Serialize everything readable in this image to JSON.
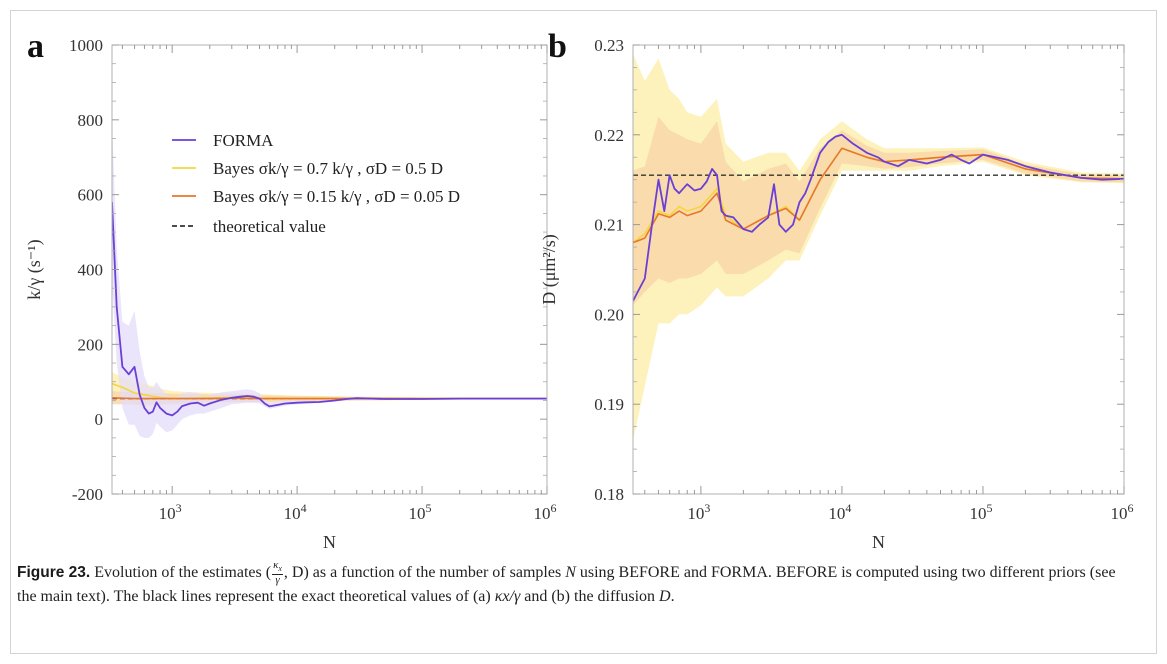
{
  "chart_data": [
    {
      "panel_label": "a",
      "type": "line",
      "xscale": "log",
      "xlim": [
        330,
        1000000
      ],
      "ylim": [
        -200,
        1000
      ],
      "xlabel": "N",
      "ylabel": "k/γ (s⁻¹)",
      "yticks": [
        -200,
        0,
        200,
        400,
        600,
        800,
        1000
      ],
      "ytick_labels": [
        "-200",
        "0",
        "200",
        "400",
        "600",
        "800",
        "1000"
      ],
      "xticks": [
        1000,
        10000,
        100000,
        1000000
      ],
      "legend": {
        "placement": "upper-center",
        "entries": [
          {
            "label": "FORMA",
            "series": "forma"
          },
          {
            "label": "Bayes    σk/γ = 0.7 k/γ ,   σD = 0.5 D",
            "series": "bayes1"
          },
          {
            "label": "Bayes    σk/γ = 0.15 k/γ ,   σD = 0.05 D",
            "series": "bayes2"
          },
          {
            "label": "theoretical value",
            "series": "theory"
          }
        ]
      },
      "theory": 55,
      "series": [
        {
          "key": "bayes1",
          "color": "#f5d63d",
          "band_color": "#fdf0b0",
          "x": [
            330,
            400,
            500,
            600,
            800,
            1000,
            1500,
            2000,
            3000,
            5000,
            10000,
            30000,
            100000,
            1000000
          ],
          "y": [
            95,
            85,
            70,
            65,
            58,
            55,
            56,
            57,
            58,
            56,
            55,
            55,
            55,
            55
          ],
          "lo": [
            65,
            58,
            40,
            35,
            35,
            38,
            40,
            43,
            45,
            45,
            47,
            50,
            52,
            53
          ],
          "hi": [
            125,
            112,
            100,
            95,
            82,
            75,
            72,
            70,
            70,
            67,
            63,
            60,
            58,
            57
          ]
        },
        {
          "key": "bayes2",
          "color": "#e8772e",
          "band_color": "#f8d7a9",
          "x": [
            330,
            400,
            500,
            600,
            800,
            1000,
            1500,
            2000,
            3000,
            5000,
            10000,
            30000,
            100000,
            1000000
          ],
          "y": [
            57,
            56,
            55,
            55,
            55,
            55,
            55,
            55,
            56,
            55,
            55,
            55,
            55,
            55
          ],
          "lo": [
            40,
            40,
            38,
            38,
            40,
            42,
            43,
            45,
            46,
            46,
            48,
            50,
            52,
            53
          ],
          "hi": [
            75,
            73,
            72,
            70,
            70,
            68,
            67,
            66,
            66,
            64,
            62,
            60,
            58,
            57
          ]
        },
        {
          "key": "forma",
          "color": "#6a3fd6",
          "band_color": "#e4dcf9",
          "x": [
            330,
            360,
            400,
            450,
            500,
            550,
            600,
            650,
            700,
            750,
            800,
            900,
            1000,
            1100,
            1200,
            1400,
            1600,
            1800,
            2000,
            2500,
            3000,
            3500,
            4000,
            4500,
            5000,
            5500,
            6000,
            7000,
            8000,
            10000,
            12000,
            15000,
            20000,
            25000,
            30000,
            40000,
            50000,
            70000,
            100000,
            200000,
            500000,
            1000000
          ],
          "y": [
            580,
            300,
            140,
            120,
            140,
            65,
            30,
            15,
            20,
            45,
            30,
            15,
            10,
            20,
            35,
            42,
            44,
            36,
            42,
            52,
            57,
            60,
            62,
            60,
            55,
            42,
            34,
            38,
            42,
            44,
            45,
            46,
            50,
            54,
            56,
            55,
            54,
            54,
            54,
            55,
            55,
            55
          ],
          "lo": [
            370,
            150,
            30,
            -15,
            -15,
            -45,
            -50,
            -50,
            -40,
            -10,
            -20,
            -35,
            -30,
            -15,
            0,
            10,
            15,
            15,
            20,
            30,
            40,
            42,
            44,
            44,
            42,
            34,
            28,
            32,
            36,
            40,
            42,
            43,
            47,
            51,
            53,
            52,
            52,
            52,
            53,
            54,
            54,
            54
          ],
          "hi": [
            790,
            460,
            260,
            250,
            290,
            180,
            115,
            85,
            85,
            100,
            85,
            65,
            55,
            58,
            70,
            72,
            70,
            60,
            65,
            72,
            75,
            78,
            80,
            77,
            70,
            55,
            45,
            48,
            50,
            50,
            50,
            50,
            54,
            57,
            60,
            58,
            57,
            56,
            56,
            56,
            56,
            56
          ]
        }
      ]
    },
    {
      "panel_label": "b",
      "type": "line",
      "xscale": "log",
      "xlim": [
        330,
        1000000
      ],
      "ylim": [
        0.18,
        0.23
      ],
      "xlabel": "N",
      "ylabel": "D (μm²/s)",
      "yticks": [
        0.18,
        0.19,
        0.2,
        0.21,
        0.22,
        0.23
      ],
      "ytick_labels": [
        "0.18",
        "0.19",
        "0.20",
        "0.21",
        "0.22",
        "0.23"
      ],
      "xticks": [
        1000,
        10000,
        100000,
        1000000
      ],
      "theory": 0.2155,
      "series": [
        {
          "key": "bayes1",
          "color": "#f5d63d",
          "band_color": "#fdf0b0",
          "x": [
            330,
            400,
            500,
            600,
            700,
            800,
            1000,
            1300,
            1500,
            2000,
            3000,
            4000,
            5000,
            7000,
            10000,
            15000,
            20000,
            30000,
            50000,
            100000,
            200000,
            500000,
            1000000
          ],
          "y": [
            0.208,
            0.209,
            0.2115,
            0.211,
            0.212,
            0.2115,
            0.212,
            0.214,
            0.211,
            0.2095,
            0.211,
            0.212,
            0.2105,
            0.215,
            0.2185,
            0.2175,
            0.217,
            0.2172,
            0.2175,
            0.2178,
            0.2162,
            0.2152,
            0.2151
          ],
          "lo": [
            0.186,
            0.192,
            0.199,
            0.199,
            0.2,
            0.2,
            0.201,
            0.203,
            0.202,
            0.202,
            0.204,
            0.206,
            0.206,
            0.211,
            0.216,
            0.216,
            0.216,
            0.216,
            0.2165,
            0.217,
            0.2155,
            0.2147,
            0.2146
          ],
          "hi": [
            0.229,
            0.226,
            0.2285,
            0.225,
            0.224,
            0.2225,
            0.222,
            0.224,
            0.219,
            0.217,
            0.218,
            0.218,
            0.216,
            0.2195,
            0.2215,
            0.2195,
            0.2185,
            0.2185,
            0.2185,
            0.2186,
            0.217,
            0.2158,
            0.2157
          ]
        },
        {
          "key": "bayes2",
          "color": "#e8772e",
          "band_color": "#f8d7a9",
          "x": [
            330,
            400,
            500,
            600,
            700,
            800,
            1000,
            1300,
            1500,
            2000,
            3000,
            4000,
            5000,
            7000,
            10000,
            15000,
            20000,
            30000,
            50000,
            100000,
            200000,
            500000,
            1000000
          ],
          "y": [
            0.208,
            0.2085,
            0.2112,
            0.2108,
            0.2115,
            0.211,
            0.2115,
            0.2135,
            0.2105,
            0.2095,
            0.211,
            0.2118,
            0.2105,
            0.215,
            0.2185,
            0.2175,
            0.217,
            0.2172,
            0.2175,
            0.2178,
            0.2162,
            0.2152,
            0.2151
          ],
          "lo": [
            0.201,
            0.2025,
            0.204,
            0.2035,
            0.204,
            0.204,
            0.2045,
            0.206,
            0.2045,
            0.2045,
            0.206,
            0.2072,
            0.2068,
            0.2118,
            0.2168,
            0.2165,
            0.2162,
            0.2164,
            0.2168,
            0.2172,
            0.2157,
            0.2148,
            0.2147
          ],
          "hi": [
            0.216,
            0.2165,
            0.222,
            0.2205,
            0.22,
            0.2195,
            0.219,
            0.2215,
            0.217,
            0.2148,
            0.2162,
            0.2168,
            0.2148,
            0.2185,
            0.2205,
            0.2188,
            0.218,
            0.218,
            0.2182,
            0.2184,
            0.2167,
            0.2156,
            0.2155
          ]
        },
        {
          "key": "forma",
          "color": "#6a3fd6",
          "band_color": "#e4dcf9",
          "x": [
            330,
            400,
            450,
            500,
            550,
            600,
            650,
            700,
            800,
            900,
            1000,
            1100,
            1200,
            1300,
            1400,
            1500,
            1700,
            2000,
            2300,
            2600,
            3000,
            3300,
            3600,
            4000,
            4500,
            5000,
            5500,
            6000,
            7000,
            8000,
            9000,
            10000,
            12000,
            15000,
            18000,
            20000,
            25000,
            30000,
            40000,
            50000,
            60000,
            70000,
            80000,
            100000,
            150000,
            200000,
            300000,
            500000,
            700000,
            1000000
          ],
          "y": [
            0.2015,
            0.204,
            0.21,
            0.215,
            0.2115,
            0.2155,
            0.214,
            0.2135,
            0.2145,
            0.2138,
            0.214,
            0.2148,
            0.2162,
            0.2155,
            0.2115,
            0.211,
            0.2108,
            0.2095,
            0.2092,
            0.21,
            0.2108,
            0.2145,
            0.21,
            0.2092,
            0.21,
            0.2125,
            0.2135,
            0.215,
            0.218,
            0.2192,
            0.2198,
            0.22,
            0.219,
            0.218,
            0.2175,
            0.217,
            0.2165,
            0.2172,
            0.2168,
            0.2172,
            0.2178,
            0.2172,
            0.2168,
            0.2178,
            0.2172,
            0.2165,
            0.2158,
            0.2152,
            0.215,
            0.2151
          ]
        }
      ]
    }
  ],
  "caption": {
    "figure_label": "Figure 23.",
    "part1": " Evolution of the estimates (",
    "kappa_sub": "x",
    "gamma": "γ",
    "part2": ", D) as a function of the number of samples ",
    "n": "N",
    "part3": " using BEFORE and FORMA. BEFORE is computed using two different priors (see the main text). The black lines represent the exact theoretical values of (a) ",
    "kx": "κx/γ",
    "part4": " and (b) the diffusion ",
    "d": "D",
    "part5": "."
  }
}
